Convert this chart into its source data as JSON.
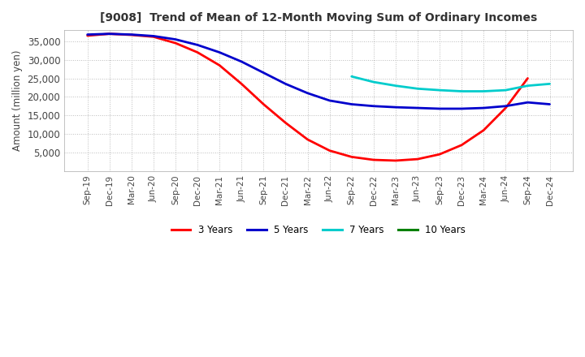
{
  "title": "[9008]  Trend of Mean of 12-Month Moving Sum of Ordinary Incomes",
  "ylabel": "Amount (million yen)",
  "ylim": [
    0,
    38000
  ],
  "yticks": [
    5000,
    10000,
    15000,
    20000,
    25000,
    30000,
    35000
  ],
  "background_color": "#ffffff",
  "plot_bg_color": "#ffffff",
  "grid_color": "#bbbbbb",
  "x_labels": [
    "Sep-19",
    "Dec-19",
    "Mar-20",
    "Jun-20",
    "Sep-20",
    "Dec-20",
    "Mar-21",
    "Jun-21",
    "Sep-21",
    "Dec-21",
    "Mar-22",
    "Jun-22",
    "Sep-22",
    "Dec-22",
    "Mar-23",
    "Jun-23",
    "Sep-23",
    "Dec-23",
    "Mar-24",
    "Jun-24",
    "Sep-24",
    "Dec-24"
  ],
  "series": {
    "3 Years": {
      "color": "#ff0000",
      "values": [
        36500,
        37000,
        36700,
        36200,
        34500,
        32000,
        28500,
        23500,
        18000,
        13000,
        8500,
        5500,
        3800,
        3000,
        2800,
        3200,
        4500,
        7000,
        11000,
        17000,
        25000,
        null
      ]
    },
    "5 Years": {
      "color": "#0000cc",
      "values": [
        36800,
        37000,
        36800,
        36400,
        35500,
        34000,
        32000,
        29500,
        26500,
        23500,
        21000,
        19000,
        18000,
        17500,
        17200,
        17000,
        16800,
        16800,
        17000,
        17500,
        18500,
        18000
      ]
    },
    "7 Years": {
      "color": "#00cccc",
      "values": [
        null,
        null,
        null,
        null,
        null,
        null,
        null,
        null,
        null,
        null,
        null,
        null,
        25500,
        24000,
        23000,
        22200,
        21800,
        21500,
        21500,
        21800,
        23000,
        23500
      ]
    },
    "10 Years": {
      "color": "#008000",
      "values": [
        null,
        null,
        null,
        null,
        null,
        null,
        null,
        null,
        null,
        null,
        null,
        null,
        null,
        null,
        null,
        null,
        null,
        null,
        null,
        null,
        null,
        null
      ]
    }
  },
  "legend_entries": [
    "3 Years",
    "5 Years",
    "7 Years",
    "10 Years"
  ],
  "legend_colors": [
    "#ff0000",
    "#0000cc",
    "#00cccc",
    "#008000"
  ]
}
